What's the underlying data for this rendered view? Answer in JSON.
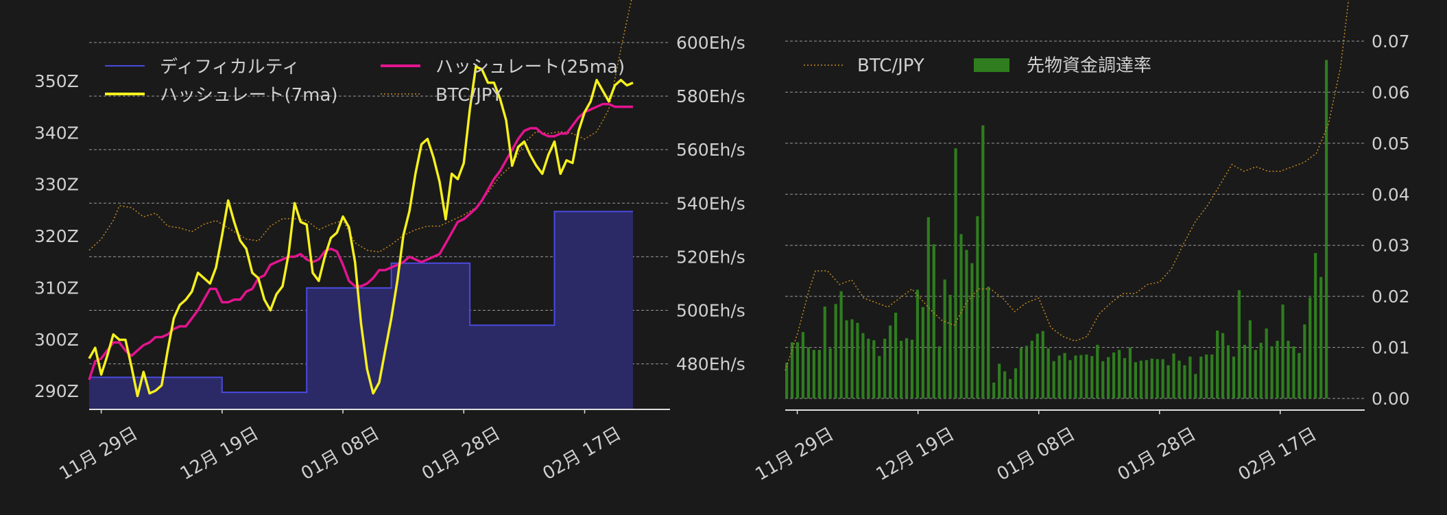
{
  "colors": {
    "background": "#1a1a1a",
    "text": "#d0d0d0",
    "grid": "#9a9a9a",
    "axis": "#e0e0e0",
    "difficulty_line": "#4a4ae0",
    "difficulty_fill": "#2b2a66",
    "hashrate7": "#f5f01e",
    "hashrate25": "#e3148f",
    "btc": "#c98b1e",
    "funding": "#2f7d1f"
  },
  "chart_data": [
    {
      "type": "line",
      "x_ticks": [
        "11月 29日",
        "12月 19日",
        "01月 08日",
        "01月 28日",
        "02月 17日"
      ],
      "x_tick_days": [
        2,
        22,
        42,
        62,
        82
      ],
      "x_range_days": [
        0,
        90
      ],
      "y_left_ticks": [
        "290Z",
        "300Z",
        "310Z",
        "320Z",
        "330Z",
        "340Z",
        "350Z"
      ],
      "y_left_values": [
        290,
        300,
        310,
        320,
        330,
        340,
        350
      ],
      "y_left_range": [
        286.3,
        357.3
      ],
      "y_right_ticks": [
        "480Eh/s",
        "500Eh/s",
        "520Eh/s",
        "540Eh/s",
        "560Eh/s",
        "580Eh/s",
        "600Eh/s"
      ],
      "y_right_values": [
        480,
        500,
        520,
        540,
        560,
        580,
        600
      ],
      "y_right_range": [
        463,
        600
      ],
      "grid": true,
      "legend": {
        "placement": "top",
        "entries": [
          "ディフィカルティ",
          "ハッシュレート(25ma)",
          "ハッシュレート(7ma)",
          "BTC/JPY"
        ]
      },
      "series": [
        {
          "name": "ディフィカルティ",
          "axis": "left",
          "style": "step-area",
          "days": [
            0,
            22,
            22,
            36,
            36,
            50,
            50,
            63,
            63,
            77,
            77,
            90
          ],
          "values": [
            292.5,
            292.5,
            289.6,
            289.6,
            309.8,
            309.8,
            314.6,
            314.6,
            302.6,
            302.6,
            324.6,
            324.6
          ]
        },
        {
          "name": "ハッシュレート(7ma)",
          "axis": "right",
          "days": [
            0,
            1,
            2,
            3,
            4,
            5,
            6,
            7,
            8,
            9,
            10,
            11,
            12,
            13,
            14,
            15,
            16,
            17,
            18,
            19,
            20,
            21,
            22,
            23,
            24,
            25,
            26,
            27,
            28,
            29,
            30,
            31,
            32,
            33,
            34,
            35,
            36,
            37,
            38,
            39,
            40,
            41,
            42,
            43,
            44,
            45,
            46,
            47,
            48,
            49,
            50,
            51,
            52,
            53,
            54,
            55,
            56,
            57,
            58,
            59,
            60,
            61,
            62,
            63,
            64,
            65,
            66,
            67,
            68,
            69,
            70,
            71,
            72,
            73,
            74,
            75,
            76,
            77,
            78,
            79,
            80,
            81,
            82,
            83,
            84,
            85,
            86,
            87,
            88,
            89,
            90
          ],
          "values": [
            482,
            486,
            476,
            483,
            491,
            489,
            489,
            479,
            468,
            477,
            469,
            470,
            472,
            485,
            497,
            502,
            504,
            507,
            514,
            512,
            510,
            516,
            528,
            541,
            533,
            526,
            523,
            514,
            512,
            504,
            500,
            506,
            509,
            521,
            540,
            533,
            532,
            514,
            511,
            520,
            527,
            529,
            535,
            531,
            518,
            495,
            478,
            469,
            473,
            485,
            497,
            511,
            528,
            537,
            551,
            562,
            564,
            557,
            548,
            534,
            551,
            549,
            555,
            575,
            591,
            590,
            585,
            585,
            579,
            571,
            554,
            561,
            563,
            558,
            554,
            551,
            558,
            563,
            551,
            556,
            555,
            567,
            574,
            578,
            586,
            582,
            578,
            584,
            586,
            584,
            585
          ]
        },
        {
          "name": "ハッシュレート(25ma)",
          "axis": "right",
          "days": [
            0,
            1,
            2,
            3,
            4,
            5,
            6,
            7,
            8,
            9,
            10,
            11,
            12,
            13,
            14,
            15,
            16,
            17,
            18,
            19,
            20,
            21,
            22,
            23,
            24,
            25,
            26,
            27,
            28,
            29,
            30,
            31,
            32,
            33,
            34,
            35,
            36,
            37,
            38,
            39,
            40,
            41,
            42,
            43,
            44,
            45,
            46,
            47,
            48,
            49,
            50,
            51,
            52,
            53,
            54,
            55,
            56,
            57,
            58,
            59,
            60,
            61,
            62,
            63,
            64,
            65,
            66,
            67,
            68,
            69,
            70,
            71,
            72,
            73,
            74,
            75,
            76,
            77,
            78,
            79,
            80,
            81,
            82,
            83,
            84,
            85,
            86,
            87,
            88,
            89,
            90
          ],
          "values": [
            474,
            481,
            482,
            485,
            488,
            488,
            485,
            483,
            485,
            487,
            488,
            490,
            490,
            491,
            493,
            494,
            494,
            497,
            500,
            504,
            508,
            508,
            503,
            503,
            504,
            504,
            507,
            508,
            512,
            513,
            517,
            518,
            519,
            520,
            520,
            521,
            519,
            518,
            519,
            522,
            523,
            522,
            517,
            511,
            509,
            509,
            510,
            512,
            515,
            515,
            516,
            517,
            518,
            520,
            519,
            518,
            519,
            520,
            521,
            525,
            529,
            533,
            534,
            536,
            538,
            541,
            545,
            549,
            552,
            556,
            560,
            564,
            567,
            568,
            568,
            566,
            565,
            565,
            566,
            566,
            569,
            572,
            574,
            575,
            576,
            577,
            577,
            576,
            576,
            576,
            576
          ]
        },
        {
          "name": "BTC/JPY",
          "axis": "none",
          "style": "dotted",
          "days": [
            0,
            2,
            4,
            5,
            7,
            9,
            11,
            13,
            15,
            17,
            19,
            21,
            24,
            26,
            28,
            30,
            32,
            34,
            36,
            38,
            40,
            42,
            44,
            46,
            48,
            50,
            52,
            54,
            56,
            58,
            60,
            62,
            64,
            66,
            68,
            70,
            72,
            74,
            76,
            78,
            80,
            82,
            84,
            86,
            88,
            90
          ],
          "norm": [
            0.36,
            0.42,
            0.52,
            0.6,
            0.59,
            0.54,
            0.56,
            0.49,
            0.48,
            0.46,
            0.5,
            0.52,
            0.46,
            0.42,
            0.41,
            0.49,
            0.53,
            0.53,
            0.52,
            0.47,
            0.5,
            0.52,
            0.4,
            0.36,
            0.35,
            0.39,
            0.44,
            0.47,
            0.49,
            0.49,
            0.52,
            0.55,
            0.59,
            0.67,
            0.76,
            0.82,
            0.94,
            1.0,
            0.99,
            1.0,
            0.99,
            0.96,
            1.0,
            1.12,
            1.45,
            1.75
          ]
        }
      ]
    },
    {
      "type": "bar",
      "x_ticks": [
        "11月 29日",
        "12月 19日",
        "01月 08日",
        "01月 28日",
        "02月 17日"
      ],
      "x_tick_days": [
        2,
        22,
        42,
        62,
        82
      ],
      "x_range_days": [
        0,
        96
      ],
      "y_ticks": [
        "0.00",
        "0.01",
        "0.02",
        "0.03",
        "0.04",
        "0.05",
        "0.06",
        "0.07"
      ],
      "y_values": [
        0.0,
        0.01,
        0.02,
        0.03,
        0.04,
        0.05,
        0.06,
        0.07
      ],
      "y_range": [
        -0.002,
        0.07
      ],
      "grid": true,
      "legend": {
        "placement": "top-left",
        "entries": [
          "BTC/JPY",
          "先物資金調達率"
        ]
      },
      "series": [
        {
          "name": "先物資金調達率",
          "style": "bar",
          "values": [
            0.007,
            0.011,
            0.011,
            0.013,
            0.01,
            0.0095,
            0.0095,
            0.018,
            0.0098,
            0.0185,
            0.021,
            0.0153,
            0.0155,
            0.0148,
            0.0128,
            0.0117,
            0.0114,
            0.0083,
            0.0117,
            0.0143,
            0.0168,
            0.0113,
            0.0118,
            0.0115,
            0.0213,
            0.0179,
            0.0355,
            0.0302,
            0.0102,
            0.0233,
            0.0203,
            0.049,
            0.0322,
            0.0291,
            0.0265,
            0.0357,
            0.0535,
            0.0219,
            0.0031,
            0.0068,
            0.0053,
            0.0038,
            0.0059,
            0.0099,
            0.0103,
            0.0113,
            0.0127,
            0.0132,
            0.0098,
            0.0073,
            0.0084,
            0.0089,
            0.0075,
            0.0084,
            0.0085,
            0.0086,
            0.0083,
            0.0105,
            0.0073,
            0.0081,
            0.009,
            0.0095,
            0.0079,
            0.01,
            0.0071,
            0.0074,
            0.0075,
            0.0078,
            0.0077,
            0.0077,
            0.0065,
            0.0088,
            0.0074,
            0.0065,
            0.0082,
            0.0048,
            0.0082,
            0.0086,
            0.0086,
            0.0133,
            0.0128,
            0.0104,
            0.0082,
            0.0212,
            0.0105,
            0.0153,
            0.0095,
            0.0109,
            0.0137,
            0.0102,
            0.0113,
            0.0184,
            0.0113,
            0.0102,
            0.0089,
            0.0145,
            0.0198,
            0.0285,
            0.0238,
            0.0663
          ]
        },
        {
          "name": "BTC/JPY",
          "style": "dotted",
          "days": [
            0,
            2,
            4,
            5,
            7,
            9,
            11,
            13,
            15,
            17,
            19,
            21,
            24,
            26,
            28,
            30,
            32,
            34,
            36,
            38,
            40,
            42,
            44,
            46,
            48,
            50,
            52,
            54,
            56,
            58,
            60,
            62,
            64,
            66,
            68,
            70,
            72,
            74,
            76,
            78,
            80,
            82,
            84,
            86,
            88,
            90,
            92,
            94,
            95
          ],
          "norm": [
            0.06,
            0.22,
            0.42,
            0.5,
            0.5,
            0.44,
            0.46,
            0.38,
            0.36,
            0.34,
            0.38,
            0.42,
            0.33,
            0.28,
            0.26,
            0.36,
            0.42,
            0.42,
            0.38,
            0.32,
            0.36,
            0.38,
            0.25,
            0.21,
            0.19,
            0.21,
            0.31,
            0.36,
            0.4,
            0.4,
            0.44,
            0.45,
            0.51,
            0.62,
            0.72,
            0.79,
            0.88,
            0.97,
            0.94,
            0.96,
            0.94,
            0.94,
            0.96,
            0.98,
            1.02,
            1.15,
            1.4,
            1.85,
            2.15
          ]
        }
      ]
    }
  ]
}
